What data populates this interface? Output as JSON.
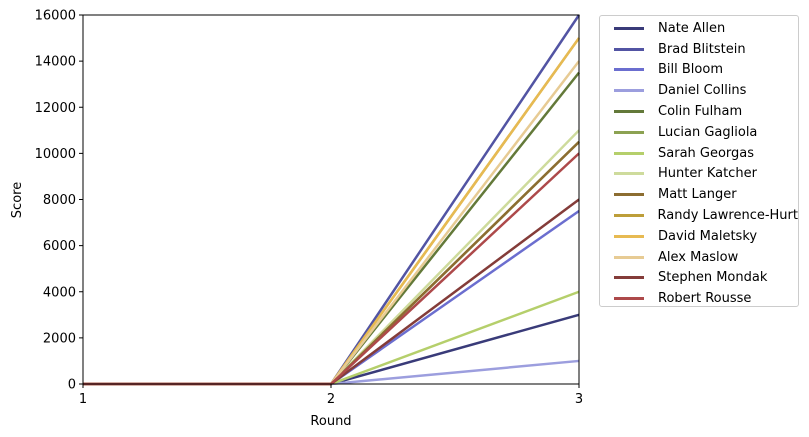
{
  "chart_data": {
    "type": "line",
    "title": "",
    "xlabel": "Round",
    "ylabel": "Score",
    "x": [
      1,
      2,
      3
    ],
    "xticks": [
      "1",
      "2",
      "3"
    ],
    "yticks": [
      "0",
      "2000",
      "4000",
      "6000",
      "8000",
      "10000",
      "12000",
      "14000",
      "16000"
    ],
    "xlim": [
      1,
      3
    ],
    "ylim": [
      0,
      16000
    ],
    "grid": false,
    "legend_position": "outside upper right",
    "series": [
      {
        "name": "Nate Allen",
        "color": "#393b79",
        "values": [
          0,
          0,
          3000
        ]
      },
      {
        "name": "Brad Blitstein",
        "color": "#5254a3",
        "values": [
          0,
          0,
          16000
        ]
      },
      {
        "name": "Bill Bloom",
        "color": "#6b6ecf",
        "values": [
          0,
          0,
          7500
        ]
      },
      {
        "name": "Daniel Collins",
        "color": "#9c9ede",
        "values": [
          0,
          0,
          1000
        ]
      },
      {
        "name": "Colin Fulham",
        "color": "#637939",
        "values": [
          0,
          0,
          13500
        ]
      },
      {
        "name": "Lucian Gagliola",
        "color": "#8ca252",
        "values": [
          0,
          0,
          10500
        ]
      },
      {
        "name": "Sarah Georgas",
        "color": "#b5cf6b",
        "values": [
          0,
          0,
          4000
        ]
      },
      {
        "name": "Hunter Katcher",
        "color": "#cedb9c",
        "values": [
          0,
          0,
          11000
        ]
      },
      {
        "name": "Matt Langer",
        "color": "#8c6d31",
        "values": [
          0,
          0,
          10500
        ]
      },
      {
        "name": "Randy Lawrence-Hurt",
        "color": "#bd9e39",
        "values": [
          0,
          0,
          15000
        ]
      },
      {
        "name": "David Maletsky",
        "color": "#e7ba52",
        "values": [
          0,
          0,
          15000
        ]
      },
      {
        "name": "Alex Maslow",
        "color": "#e7cb94",
        "values": [
          0,
          0,
          14000
        ]
      },
      {
        "name": "Stephen Mondak",
        "color": "#843c39",
        "values": [
          0,
          0,
          8000
        ]
      },
      {
        "name": "Robert Rousse",
        "color": "#ad494a",
        "values": [
          0,
          0,
          10000
        ]
      }
    ]
  }
}
